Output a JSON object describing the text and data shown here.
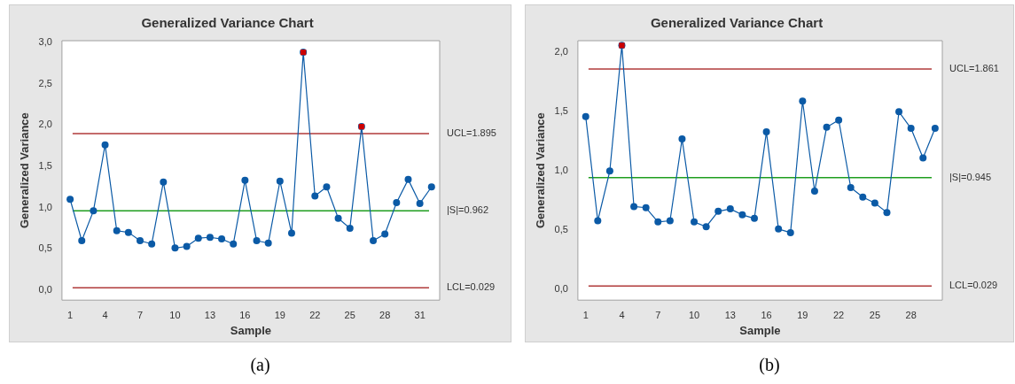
{
  "chart_data": [
    {
      "type": "line",
      "title": "Generalized Variance Chart",
      "xlabel": "Sample",
      "ylabel": "Generalized Variance",
      "marker": "circle",
      "grid": false,
      "legend": false,
      "xlim": [
        0.3,
        32.7
      ],
      "xticks": [
        1,
        4,
        7,
        10,
        13,
        16,
        19,
        22,
        25,
        28,
        31
      ],
      "ylim": [
        -0.12,
        3.02
      ],
      "yticks": [
        {
          "value": 0,
          "label": "0,0"
        },
        {
          "value": 0.5,
          "label": "0,5"
        },
        {
          "value": 1,
          "label": "1,0"
        },
        {
          "value": 1.5,
          "label": "1,5"
        },
        {
          "value": 2,
          "label": "2,0"
        },
        {
          "value": 2.5,
          "label": "2,5"
        },
        {
          "value": 3,
          "label": "3,0"
        }
      ],
      "series": [
        {
          "color": "#0b5aa6",
          "x": [
            1,
            2,
            3,
            4,
            5,
            6,
            7,
            8,
            9,
            10,
            11,
            12,
            13,
            14,
            15,
            16,
            17,
            18,
            19,
            20,
            21,
            22,
            23,
            24,
            25,
            26,
            27,
            28,
            29,
            30,
            31,
            32
          ],
          "values": [
            1.1,
            0.6,
            0.96,
            1.76,
            0.72,
            0.7,
            0.6,
            0.56,
            1.31,
            0.51,
            0.53,
            0.63,
            0.64,
            0.62,
            0.56,
            1.33,
            0.6,
            0.57,
            1.32,
            0.69,
            2.88,
            1.14,
            1.25,
            0.87,
            0.75,
            1.98,
            0.6,
            0.68,
            1.06,
            1.34,
            1.05,
            1.25
          ]
        },
        {
          "type": "scatter",
          "color": "#cc0000",
          "marker": "square",
          "x": [
            21,
            26
          ],
          "values": [
            2.88,
            1.98
          ]
        }
      ],
      "ref_lines": [
        {
          "axis": "y",
          "value": 1.895,
          "label": "UCL=1.895",
          "color": "#b03a3a"
        },
        {
          "axis": "y",
          "value": 0.962,
          "label": "|S|=0.962",
          "color": "#1f9e1f"
        },
        {
          "axis": "y",
          "value": 0.029,
          "label": "LCL=0.029",
          "color": "#b03a3a"
        }
      ],
      "annotations": [
        "(a)"
      ]
    },
    {
      "type": "line",
      "title": "Generalized Variance Chart",
      "xlabel": "Sample",
      "ylabel": "Generalized Variance",
      "marker": "circle",
      "grid": false,
      "legend": false,
      "xlim": [
        0.35,
        30.6
      ],
      "xticks": [
        1,
        4,
        7,
        10,
        13,
        16,
        19,
        22,
        25,
        28
      ],
      "ylim": [
        -0.09,
        2.1
      ],
      "yticks": [
        {
          "value": 0,
          "label": "0,0"
        },
        {
          "value": 0.5,
          "label": "0,5"
        },
        {
          "value": 1,
          "label": "1,0"
        },
        {
          "value": 1.5,
          "label": "1,5"
        },
        {
          "value": 2,
          "label": "2,0"
        }
      ],
      "series": [
        {
          "color": "#0b5aa6",
          "x": [
            1,
            2,
            3,
            4,
            5,
            6,
            7,
            8,
            9,
            10,
            11,
            12,
            13,
            14,
            15,
            16,
            17,
            18,
            19,
            20,
            21,
            22,
            23,
            24,
            25,
            26,
            27,
            28,
            29,
            30
          ],
          "values": [
            1.46,
            0.58,
            1.0,
            2.06,
            0.7,
            0.69,
            0.57,
            0.58,
            1.27,
            0.57,
            0.53,
            0.66,
            0.68,
            0.63,
            0.6,
            1.33,
            0.51,
            0.48,
            1.59,
            0.83,
            1.37,
            1.43,
            0.86,
            0.78,
            0.73,
            0.65,
            1.5,
            1.36,
            1.11,
            1.36
          ]
        },
        {
          "type": "scatter",
          "color": "#cc0000",
          "marker": "square",
          "x": [
            4
          ],
          "values": [
            2.06
          ]
        }
      ],
      "ref_lines": [
        {
          "axis": "y",
          "value": 1.861,
          "label": "UCL=1.861",
          "color": "#b03a3a"
        },
        {
          "axis": "y",
          "value": 0.945,
          "label": "|S|=0.945",
          "color": "#1f9e1f"
        },
        {
          "axis": "y",
          "value": 0.029,
          "label": "LCL=0.029",
          "color": "#b03a3a"
        }
      ],
      "annotations": [
        "(b)"
      ]
    }
  ]
}
